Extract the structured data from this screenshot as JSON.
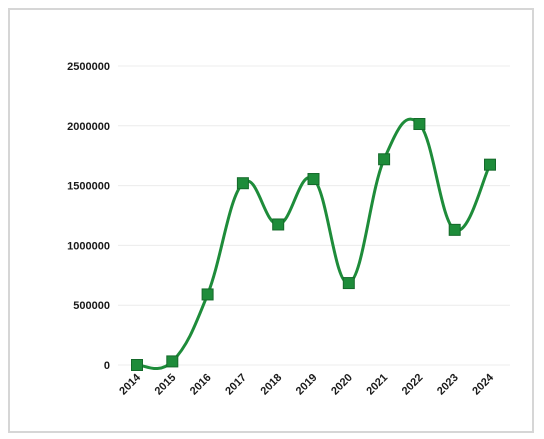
{
  "chart_data": {
    "type": "line",
    "title": "",
    "xlabel": "",
    "ylabel": "",
    "categories": [
      "2014",
      "2015",
      "2016",
      "2017",
      "2018",
      "2019",
      "2020",
      "2021",
      "2022",
      "2023",
      "2024"
    ],
    "series": [
      {
        "values": [
          0,
          30000,
          590000,
          1520000,
          1175000,
          1555000,
          685000,
          1720000,
          2015000,
          1130000,
          1675000
        ]
      }
    ],
    "ylim": [
      0,
      2500000
    ],
    "yticks": [
      "0",
      "500000",
      "1000000",
      "1500000",
      "2000000",
      "2500000"
    ],
    "grid": true,
    "legend": "none",
    "line_style": "smooth",
    "marker": "square",
    "colors": {
      "line": "#1e8c3a",
      "marker": "#1e8c3a",
      "marker_edge": "#14692a",
      "grid": "#ececec",
      "frame": "#d6d6d6"
    }
  }
}
